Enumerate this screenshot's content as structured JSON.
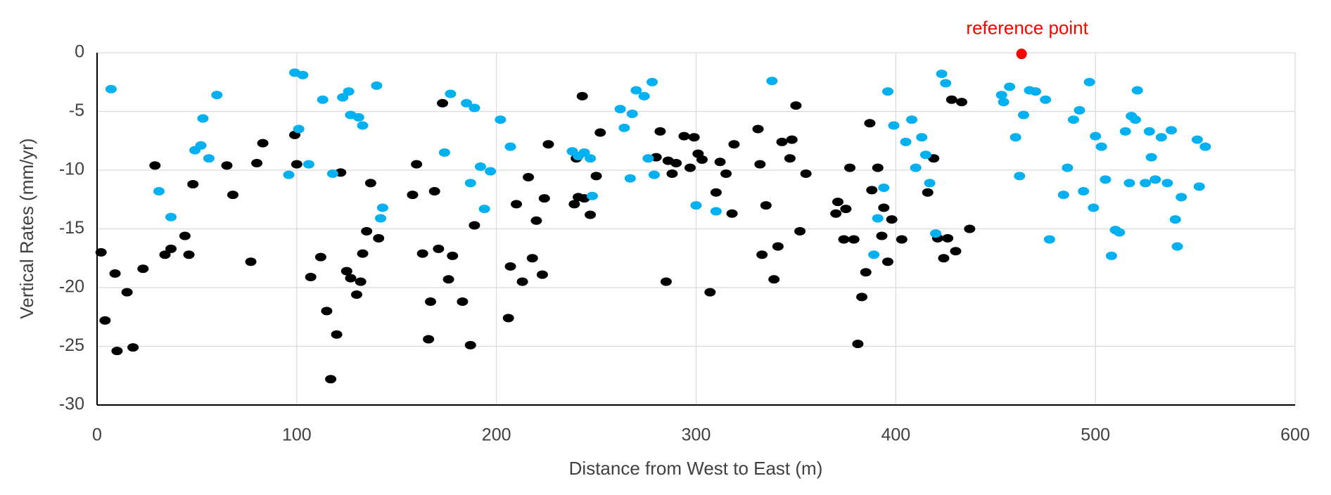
{
  "chart_data": {
    "type": "scatter",
    "xlabel": "Distance from West to East (m)",
    "ylabel": "Vertical Rates (mm/yr)",
    "xlim": [
      0,
      600
    ],
    "ylim": [
      -30,
      0
    ],
    "xticks": [
      0,
      100,
      200,
      300,
      400,
      500,
      600
    ],
    "yticks": [
      0,
      -5,
      -10,
      -15,
      -20,
      -25,
      -30
    ],
    "grid": true,
    "series": [
      {
        "color": "#000000",
        "x": [
          2,
          4,
          9,
          10,
          15,
          18,
          23,
          29,
          34,
          37,
          44,
          46,
          48,
          65,
          68,
          77,
          80,
          83,
          99,
          100,
          107,
          112,
          115,
          117,
          120,
          122,
          125,
          127,
          130,
          132,
          133,
          135,
          137,
          141,
          158,
          160,
          163,
          166,
          167,
          169,
          171,
          173,
          176,
          178,
          183,
          187,
          189,
          206,
          207,
          210,
          213,
          216,
          218,
          220,
          223,
          224,
          226,
          239,
          240,
          241,
          243,
          244,
          247,
          250,
          252,
          280,
          282,
          285,
          286,
          288,
          290,
          294,
          297,
          299,
          301,
          303,
          307,
          310,
          312,
          315,
          318,
          319,
          331,
          332,
          333,
          335,
          339,
          341,
          343,
          347,
          348,
          350,
          352,
          355,
          370,
          371,
          374,
          375,
          377,
          379,
          381,
          383,
          385,
          387,
          388,
          391,
          393,
          394,
          396,
          398,
          403,
          416,
          419,
          421,
          424,
          426,
          428,
          430,
          433,
          437
        ],
        "values": [
          -17,
          -22.8,
          -18.8,
          -25.4,
          -20.4,
          -25.1,
          -18.4,
          -9.6,
          -17.2,
          -16.7,
          -15.6,
          -17.2,
          -11.2,
          -9.6,
          -12.1,
          -17.8,
          -9.4,
          -7.7,
          -7,
          -9.5,
          -19.1,
          -17.4,
          -22,
          -27.8,
          -24,
          -10.2,
          -18.6,
          -19.2,
          -20.6,
          -19.5,
          -17.1,
          -15.2,
          -11.1,
          -15.8,
          -12.1,
          -9.5,
          -17.1,
          -24.4,
          -21.2,
          -11.8,
          -16.7,
          -4.3,
          -19.3,
          -17.3,
          -21.2,
          -24.9,
          -14.7,
          -22.6,
          -18.2,
          -12.9,
          -19.5,
          -10.6,
          -17.5,
          -14.3,
          -18.9,
          -12.4,
          -7.8,
          -12.9,
          -9,
          -12.3,
          -3.7,
          -12.4,
          -13.8,
          -10.5,
          -6.8,
          -8.9,
          -6.7,
          -19.5,
          -9.2,
          -10.3,
          -9.4,
          -7.1,
          -9.8,
          -7.2,
          -8.6,
          -9.1,
          -20.4,
          -11.9,
          -9.3,
          -10.3,
          -13.7,
          -7.8,
          -6.5,
          -9.5,
          -17.2,
          -13,
          -19.3,
          -16.5,
          -7.6,
          -9,
          -7.4,
          -4.5,
          -15.2,
          -10.3,
          -13.7,
          -12.7,
          -15.9,
          -13.3,
          -9.8,
          -15.9,
          -24.8,
          -20.8,
          -18.7,
          -6,
          -11.7,
          -9.8,
          -15.6,
          -13.2,
          -17.8,
          -14.2,
          -15.9,
          -11.9,
          -9,
          -15.8,
          -17.5,
          -15.8,
          -4,
          -16.9,
          -4.2,
          -15
        ]
      },
      {
        "color": "#00b0f0",
        "x": [
          7,
          31,
          37,
          49,
          52,
          53,
          56,
          60,
          96,
          99,
          101,
          103,
          106,
          113,
          118,
          123,
          126,
          127,
          131,
          133,
          140,
          142,
          143,
          174,
          177,
          185,
          187,
          189,
          192,
          194,
          197,
          202,
          207,
          238,
          241,
          244,
          247,
          248,
          262,
          264,
          267,
          268,
          270,
          274,
          276,
          278,
          279,
          300,
          310,
          338,
          389,
          391,
          394,
          396,
          399,
          405,
          408,
          410,
          413,
          415,
          417,
          420,
          423,
          425,
          453,
          454,
          457,
          460,
          462,
          464,
          467,
          470,
          475,
          477,
          484,
          486,
          489,
          492,
          494,
          497,
          499,
          500,
          503,
          505,
          508,
          510,
          512,
          515,
          517,
          518,
          520,
          521,
          525,
          527,
          528,
          530,
          533,
          536,
          538,
          540,
          541,
          543,
          551,
          552,
          555
        ],
        "values": [
          -3.1,
          -11.8,
          -14,
          -8.3,
          -7.9,
          -5.6,
          -9,
          -3.6,
          -10.4,
          -1.7,
          -6.5,
          -1.9,
          -9.5,
          -4,
          -10.3,
          -3.8,
          -3.3,
          -5.3,
          -5.5,
          -6.2,
          -2.8,
          -14.1,
          -13.2,
          -8.5,
          -3.5,
          -4.3,
          -11.1,
          -4.7,
          -9.7,
          -13.3,
          -10.1,
          -5.7,
          -8,
          -8.4,
          -8.8,
          -8.5,
          -9,
          -12.2,
          -4.8,
          -6.4,
          -10.7,
          -5.2,
          -3.2,
          -3.7,
          -9,
          -2.5,
          -10.4,
          -13,
          -13.5,
          -2.4,
          -17.2,
          -14.1,
          -11.5,
          -3.3,
          -6.2,
          -7.6,
          -5.7,
          -9.8,
          -7.2,
          -8.7,
          -11.1,
          -15.4,
          -1.8,
          -2.6,
          -3.6,
          -4.2,
          -2.9,
          -7.2,
          -10.5,
          -5.3,
          -3.2,
          -3.3,
          -4,
          -15.9,
          -12.1,
          -9.8,
          -5.7,
          -4.9,
          -11.8,
          -2.5,
          -13.2,
          -7.1,
          -8,
          -10.8,
          -17.3,
          -15.1,
          -15.3,
          -6.7,
          -11.1,
          -5.4,
          -5.7,
          -3.2,
          -11.1,
          -6.7,
          -8.9,
          -10.8,
          -7.2,
          -11.1,
          -6.6,
          -14.2,
          -16.5,
          -12.3,
          -7.4,
          -11.4,
          -8
        ]
      }
    ],
    "annotations": [
      {
        "text": "reference point",
        "x": 463,
        "y": -0.1,
        "color": "#ff0000"
      }
    ]
  }
}
